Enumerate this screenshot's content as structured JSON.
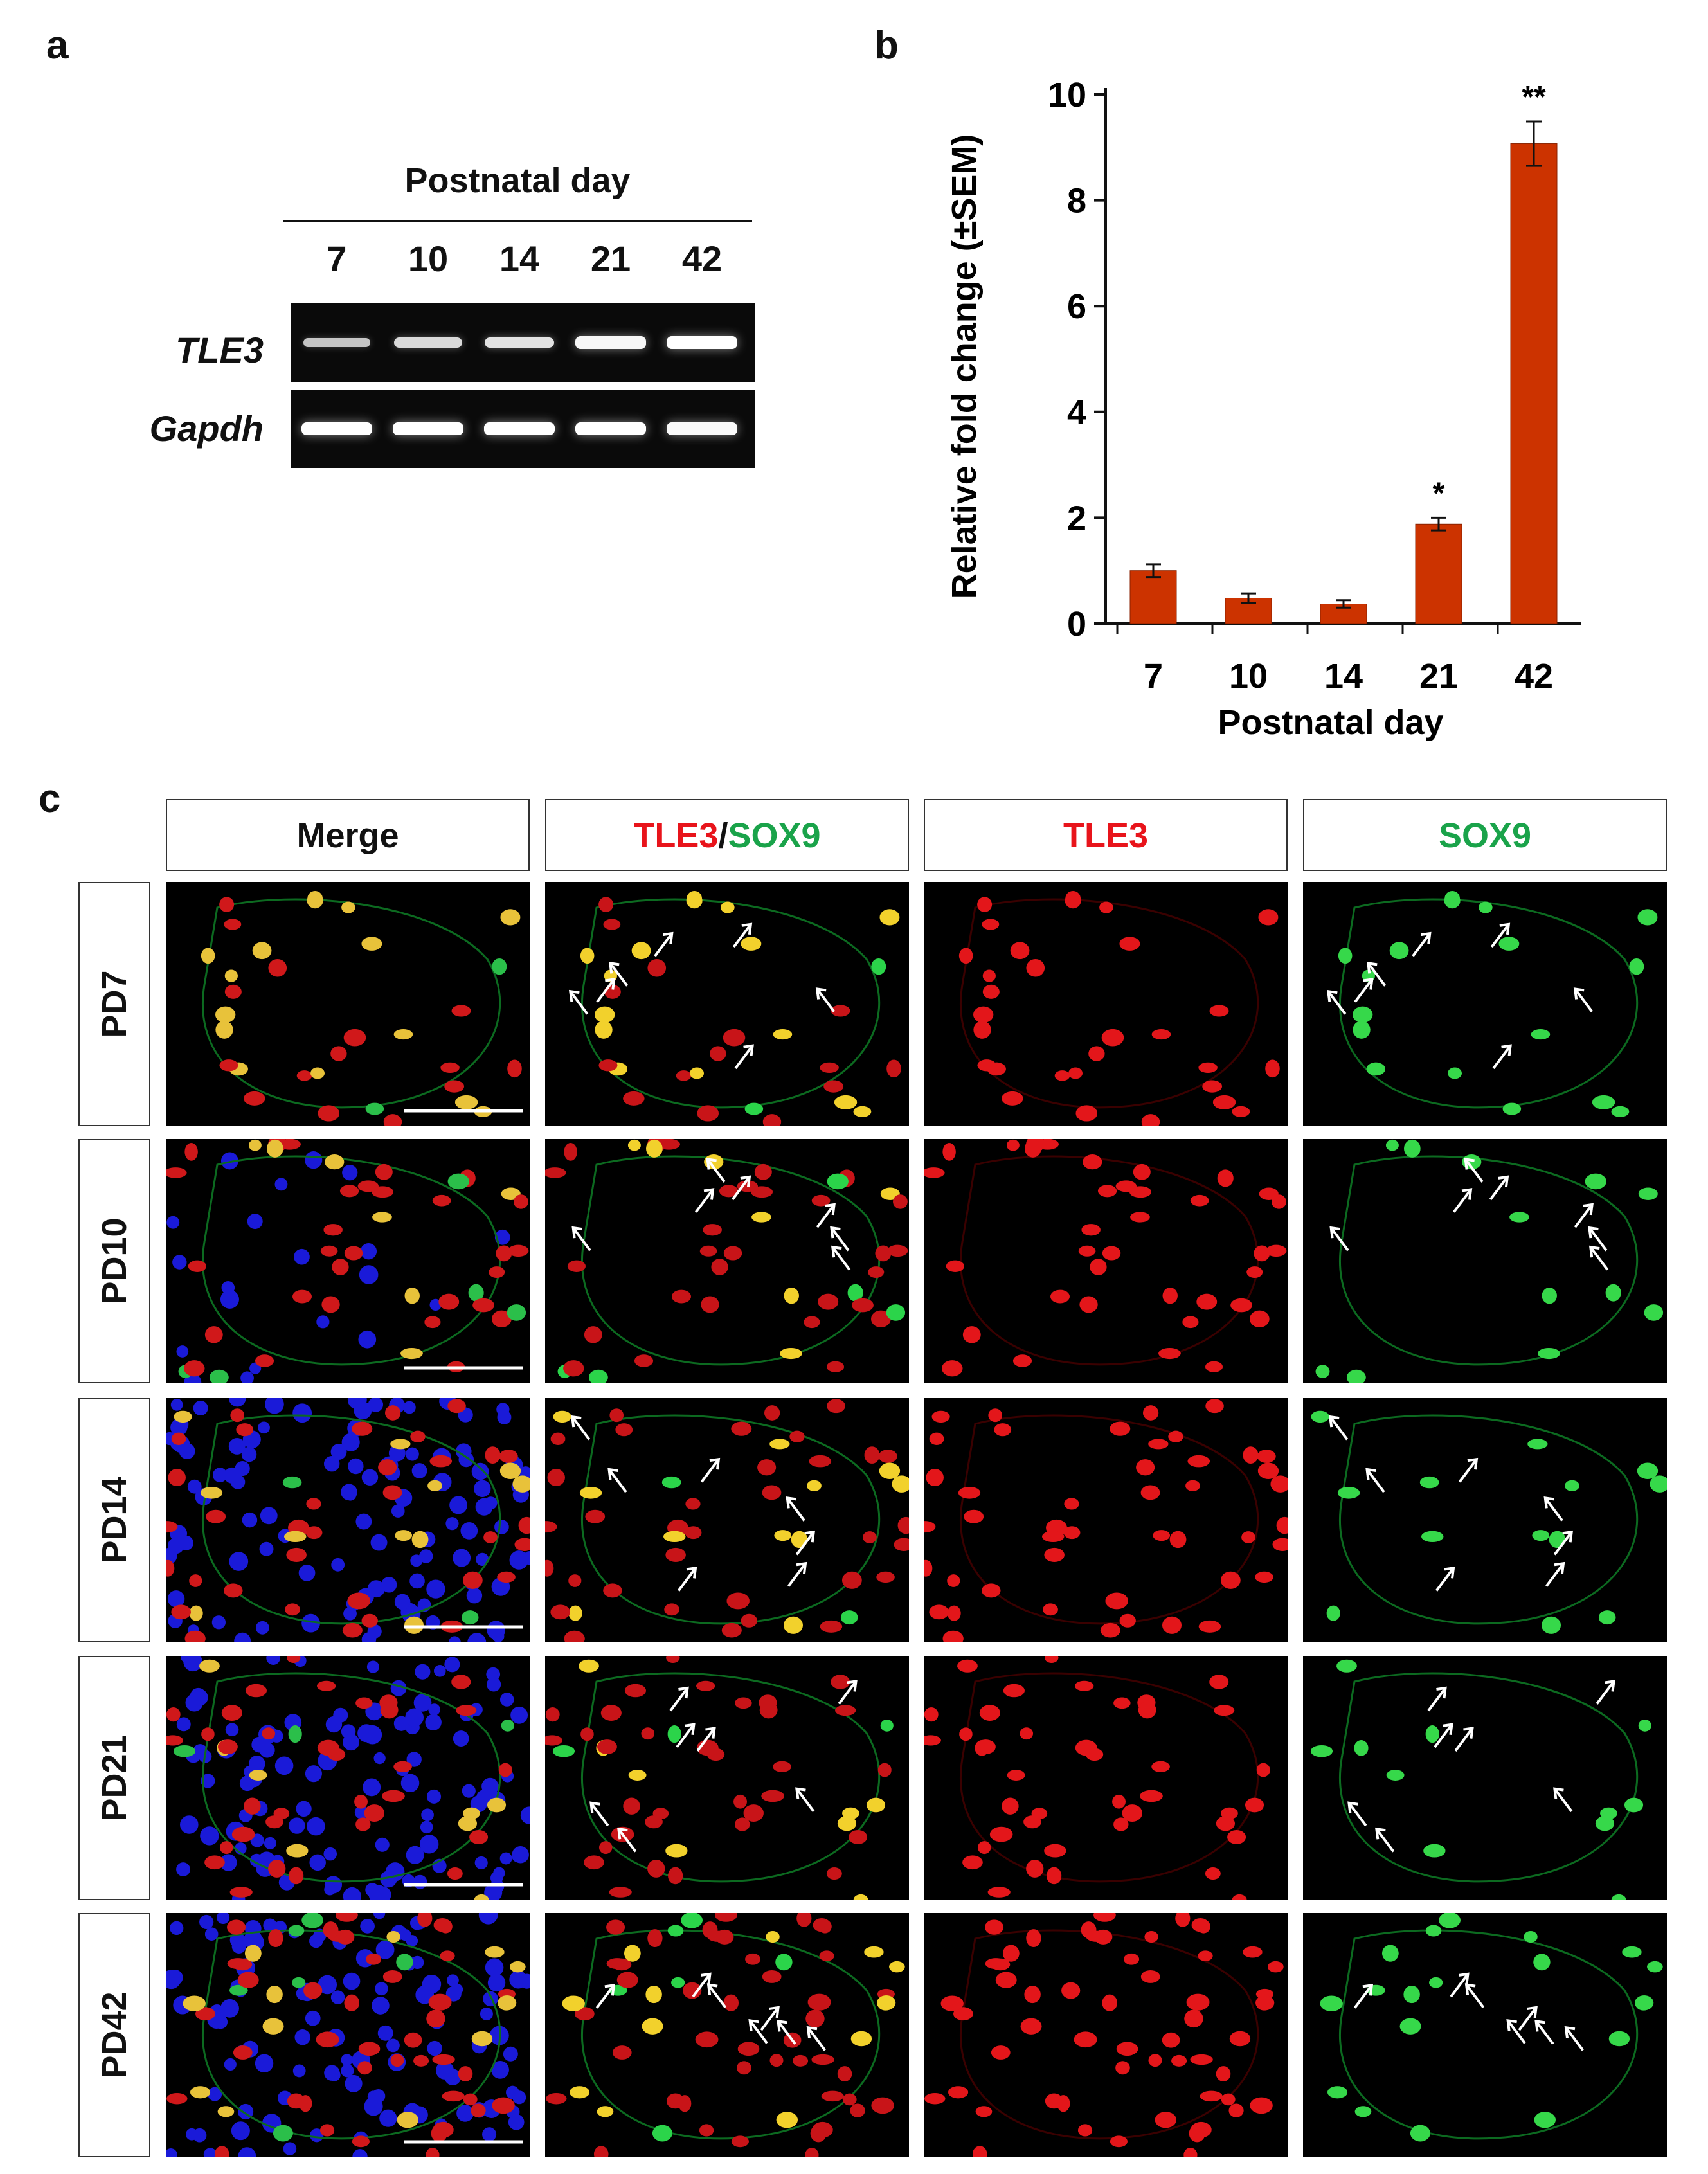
{
  "panels": {
    "a": {
      "letter": "a",
      "header": "Postnatal day",
      "lanes": [
        "7",
        "10",
        "14",
        "21",
        "42"
      ],
      "rows": [
        {
          "label": "TLE3",
          "band_intensity": [
            0.45,
            0.65,
            0.72,
            0.92,
            1.0
          ]
        },
        {
          "label": "Gapdh",
          "band_intensity": [
            1.0,
            1.0,
            1.0,
            1.0,
            0.95
          ]
        }
      ]
    },
    "b": {
      "letter": "b"
    },
    "c": {
      "letter": "c",
      "columns": [
        {
          "parts": [
            {
              "text": "Merge",
              "color": "#111111"
            }
          ]
        },
        {
          "parts": [
            {
              "text": "TLE3",
              "color": "#e8141b"
            },
            {
              "text": "/",
              "color": "#111111"
            },
            {
              "text": "SOX9",
              "color": "#1aa34a"
            }
          ]
        },
        {
          "parts": [
            {
              "text": "TLE3",
              "color": "#e8141b"
            }
          ]
        },
        {
          "parts": [
            {
              "text": "SOX9",
              "color": "#1aa34a"
            }
          ]
        }
      ],
      "rows": [
        "PD7",
        "PD10",
        "PD14",
        "PD21",
        "PD42"
      ]
    }
  },
  "chart_data": {
    "type": "bar",
    "categories": [
      "7",
      "10",
      "14",
      "21",
      "42"
    ],
    "values": [
      1.0,
      0.48,
      0.37,
      1.88,
      9.07
    ],
    "errors": [
      0.12,
      0.09,
      0.07,
      0.12,
      0.42
    ],
    "significance": [
      "",
      "",
      "",
      "*",
      "**"
    ],
    "xlabel": "Postnatal day",
    "ylabel": "Relative fold change (±SEM)",
    "yticks": [
      0,
      2,
      4,
      6,
      8,
      10
    ],
    "ylim": [
      0,
      10
    ],
    "bar_color": "#cc3300",
    "grid": false
  }
}
